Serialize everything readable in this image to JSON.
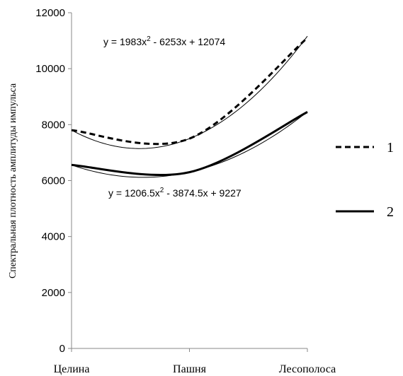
{
  "chart_data": {
    "type": "line",
    "ylabel": "Спектральная плотность амплитуды импульса",
    "xlabel": "",
    "categories": [
      "Целина",
      "Пашня",
      "Лесополоса"
    ],
    "ylim": [
      0,
      12000
    ],
    "yticks": [
      0,
      2000,
      4000,
      6000,
      8000,
      10000,
      12000
    ],
    "series": [
      {
        "name": "1",
        "values": [
          7800,
          7500,
          11100
        ],
        "style": "dashed",
        "color": "#000000"
      },
      {
        "name": "2",
        "values": [
          6560,
          6300,
          8450
        ],
        "style": "solid-thick",
        "color": "#000000"
      }
    ],
    "trendlines": [
      {
        "series": "1",
        "a": 1983,
        "b": -6253,
        "c": 12074
      },
      {
        "series": "2",
        "a": 1206.5,
        "b": -3874.5,
        "c": 9227
      }
    ],
    "annotations": {
      "eq1": {
        "prefix": "y = 1983x",
        "sup": "2",
        "suffix": " - 6253x + 12074"
      },
      "eq2": {
        "prefix": "y = 1206.5x",
        "sup": "2",
        "suffix": " - 3874.5x + 9227"
      }
    },
    "legend": {
      "placement": "right",
      "items": [
        "1",
        "2"
      ]
    },
    "grid": false
  }
}
